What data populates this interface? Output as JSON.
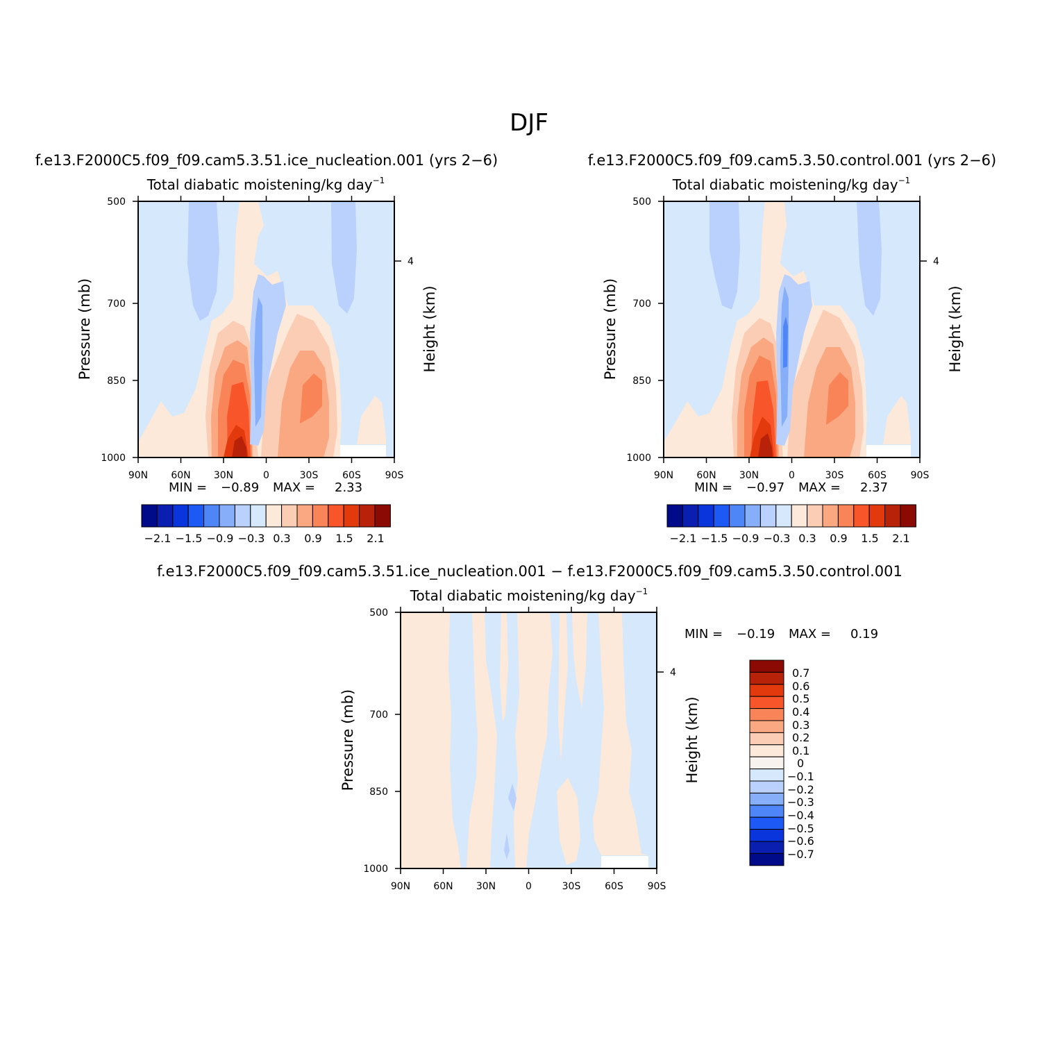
{
  "figure": {
    "title": "DJF"
  },
  "colors": {
    "bg_negative": "#d6e8fc",
    "bg_positive": "#fde9d9",
    "axis": "#000000",
    "palette_full": [
      "#000b8a",
      "#0a1fb0",
      "#0b35dc",
      "#1d59f5",
      "#4f86f7",
      "#87aef8",
      "#b9d1fc",
      "#d6e8fc",
      "#fde9d9",
      "#fbcdb4",
      "#f9a882",
      "#f88457",
      "#f8562a",
      "#e23a0d",
      "#b82208",
      "#8b0b04"
    ],
    "palette_diff": [
      "#000b8a",
      "#0a1fb0",
      "#0b35dc",
      "#1d59f5",
      "#4f86f7",
      "#87aef8",
      "#b9d1fc",
      "#d6e8fc",
      "#f7f2ee",
      "#fde9d9",
      "#fbcdb4",
      "#f9a882",
      "#f88457",
      "#f8562a",
      "#e23a0d",
      "#b82208",
      "#8b0b04"
    ]
  },
  "panels": [
    {
      "case_title": "f.e13.F2000C5.f09_f09.cam5.3.51.ice_nucleation.001 (yrs 2−6)",
      "var_title": "Total diabatic moistening/kg day",
      "var_title_sup": "−1",
      "ylabel": "Pressure (mb)",
      "ylabel_right": "Height (km)",
      "min_label": "MIN =",
      "min_value": "−0.89",
      "max_label": "MAX =",
      "max_value": "2.33"
    },
    {
      "case_title": "f.e13.F2000C5.f09_f09.cam5.3.50.control.001 (yrs 2−6)",
      "var_title": "Total diabatic moistening/kg day",
      "var_title_sup": "−1",
      "ylabel": "Pressure (mb)",
      "ylabel_right": "Height (km)",
      "min_label": "MIN =",
      "min_value": "−0.97",
      "max_label": "MAX =",
      "max_value": "2.37"
    },
    {
      "case_title": "f.e13.F2000C5.f09_f09.cam5.3.51.ice_nucleation.001 − f.e13.F2000C5.f09_f09.cam5.3.50.control.001",
      "var_title": "Total diabatic moistening/kg day",
      "var_title_sup": "−1",
      "ylabel": "Pressure (mb)",
      "ylabel_right": "Height (km)",
      "min_label": "MIN =",
      "min_value": "−0.19",
      "max_label": "MAX =",
      "max_value": "0.19"
    }
  ],
  "chart_data": [
    {
      "type": "contour",
      "title": "Total diabatic moistening/kg day−1",
      "subtitle": "f.e13.F2000C5.f09_f09.cam5.3.51.ice_nucleation.001 (yrs 2−6)",
      "xlabel": "",
      "ylabel": "Pressure (mb)",
      "ylabel_right": "Height (km)",
      "x_ticks": [
        "90N",
        "60N",
        "30N",
        "0",
        "30S",
        "60S",
        "90S"
      ],
      "y_ticks": [
        "500",
        "700",
        "850",
        "1000"
      ],
      "y_right_ticks": [
        "4"
      ],
      "ylim": [
        1000,
        500
      ],
      "colorbar_levels": [
        -2.1,
        -1.8,
        -1.5,
        -1.2,
        -0.9,
        -0.6,
        -0.3,
        0,
        0.3,
        0.6,
        0.9,
        1.2,
        1.5,
        1.8,
        2.1
      ],
      "colorbar_labels": [
        "−2.1",
        "−1.5",
        "−0.9",
        "−0.3",
        "0.3",
        "0.9",
        "1.5",
        "2.1"
      ],
      "min": -0.89,
      "max": 2.33
    },
    {
      "type": "contour",
      "title": "Total diabatic moistening/kg day−1",
      "subtitle": "f.e13.F2000C5.f09_f09.cam5.3.50.control.001 (yrs 2−6)",
      "xlabel": "",
      "ylabel": "Pressure (mb)",
      "ylabel_right": "Height (km)",
      "x_ticks": [
        "90N",
        "60N",
        "30N",
        "0",
        "30S",
        "60S",
        "90S"
      ],
      "y_ticks": [
        "500",
        "700",
        "850",
        "1000"
      ],
      "y_right_ticks": [
        "4"
      ],
      "ylim": [
        1000,
        500
      ],
      "colorbar_levels": [
        -2.1,
        -1.8,
        -1.5,
        -1.2,
        -0.9,
        -0.6,
        -0.3,
        0,
        0.3,
        0.6,
        0.9,
        1.2,
        1.5,
        1.8,
        2.1
      ],
      "colorbar_labels": [
        "−2.1",
        "−1.5",
        "−0.9",
        "−0.3",
        "0.3",
        "0.9",
        "1.5",
        "2.1"
      ],
      "min": -0.97,
      "max": 2.37
    },
    {
      "type": "contour",
      "title": "Total diabatic moistening/kg day−1",
      "subtitle": "f.e13.F2000C5.f09_f09.cam5.3.51.ice_nucleation.001 − f.e13.F2000C5.f09_f09.cam5.3.50.control.001",
      "xlabel": "",
      "ylabel": "Pressure (mb)",
      "ylabel_right": "Height (km)",
      "x_ticks": [
        "90N",
        "60N",
        "30N",
        "0",
        "30S",
        "60S",
        "90S"
      ],
      "y_ticks": [
        "500",
        "700",
        "850",
        "1000"
      ],
      "y_right_ticks": [
        "4"
      ],
      "ylim": [
        1000,
        500
      ],
      "colorbar_levels": [
        -0.7,
        -0.6,
        -0.5,
        -0.4,
        -0.3,
        -0.2,
        -0.1,
        0,
        0.1,
        0.2,
        0.3,
        0.4,
        0.5,
        0.6,
        0.7
      ],
      "colorbar_labels": [
        "0.7",
        "0.6",
        "0.5",
        "0.4",
        "0.3",
        "0.2",
        "0.1",
        "0",
        "−0.1",
        "−0.2",
        "−0.3",
        "−0.4",
        "−0.5",
        "−0.6",
        "−0.7"
      ],
      "min": -0.19,
      "max": 0.19
    }
  ]
}
